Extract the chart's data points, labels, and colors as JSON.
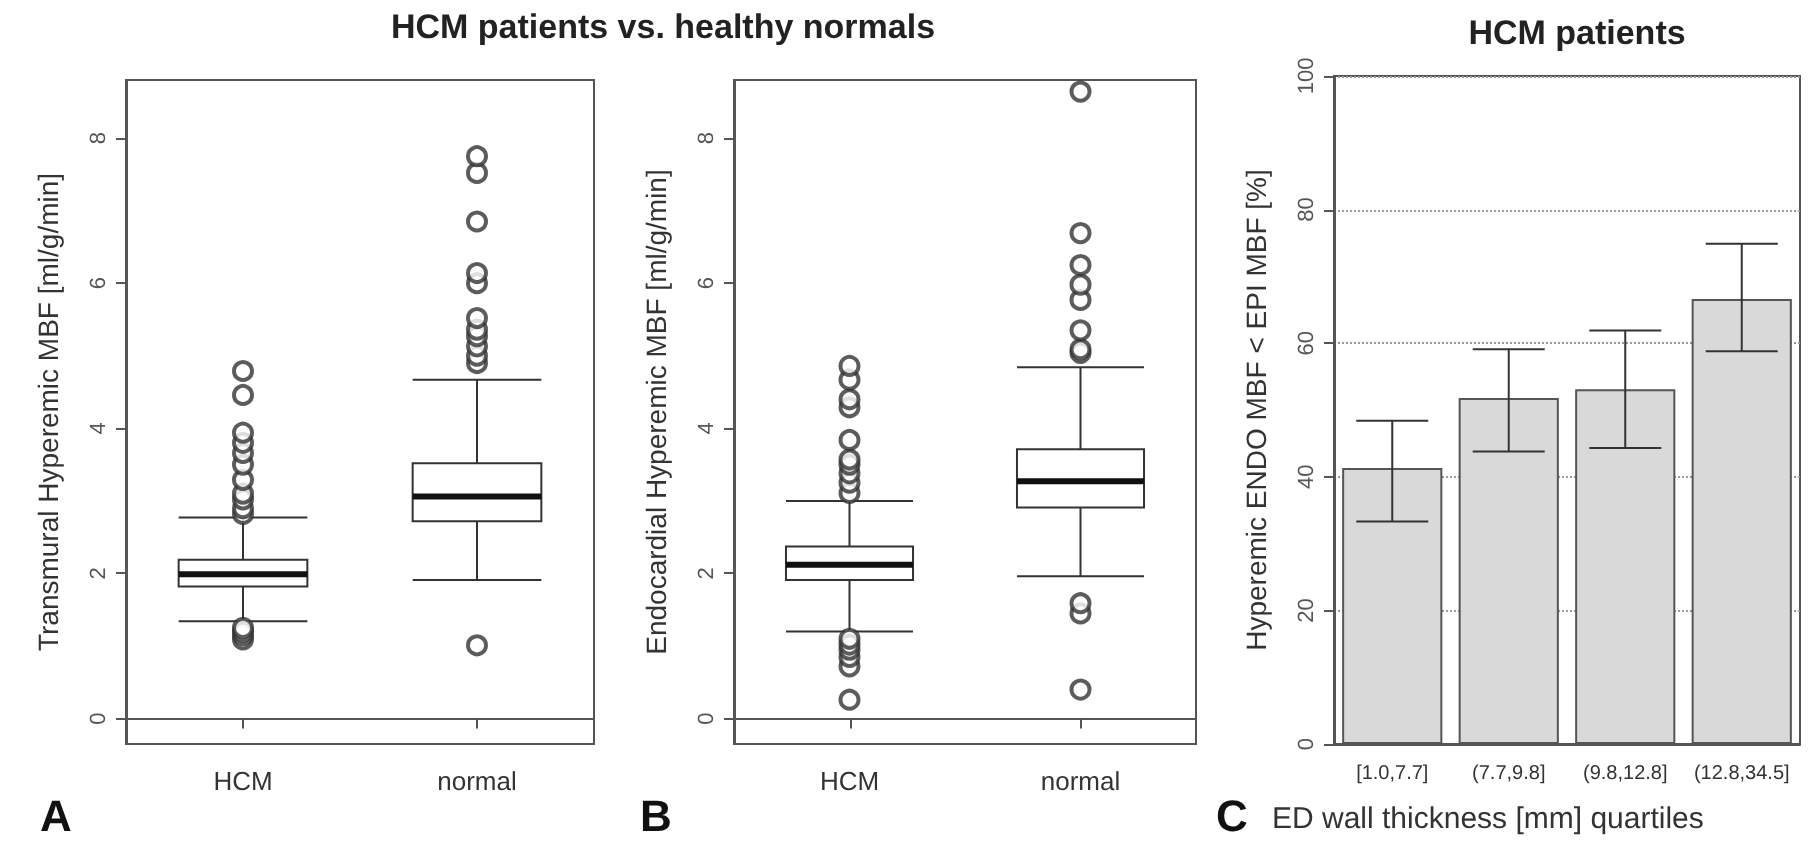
{
  "chart_data": [
    {
      "type": "box",
      "title": "HCM patients vs. healthy normals",
      "ylabel": "Transmural Hyperemic MBF [ml/g/min]",
      "categories": [
        "HCM",
        "normal"
      ],
      "ylim": [
        -0.35,
        8.8
      ],
      "yticks": [
        0,
        2,
        4,
        6,
        8
      ],
      "annotations": [
        "A"
      ],
      "boxes": [
        {
          "low": 1.34,
          "q1": 1.82,
          "median": 1.99,
          "q3": 2.19,
          "high": 2.77,
          "outliers": [
            1.09,
            1.15,
            1.2,
            1.25,
            2.82,
            2.9,
            3.02,
            3.1,
            3.29,
            3.5,
            3.66,
            3.8,
            3.94,
            4.46,
            4.79
          ]
        },
        {
          "low": 1.91,
          "q1": 2.72,
          "median": 3.06,
          "q3": 3.52,
          "high": 4.67,
          "outliers": [
            1.01,
            4.9,
            5.0,
            5.13,
            5.27,
            5.36,
            5.52,
            6.0,
            6.14,
            6.85,
            7.52,
            7.75
          ]
        }
      ]
    },
    {
      "type": "box",
      "ylabel": "Endocardial Hyperemic MBF [ml/g/min]",
      "categories": [
        "HCM",
        "normal"
      ],
      "ylim": [
        -0.35,
        8.8
      ],
      "yticks": [
        0,
        2,
        4,
        6,
        8
      ],
      "annotations": [
        "B"
      ],
      "boxes": [
        {
          "low": 1.2,
          "q1": 1.91,
          "median": 2.12,
          "q3": 2.37,
          "high": 3.0,
          "outliers": [
            0.26,
            0.72,
            0.85,
            0.95,
            1.02,
            1.1,
            3.11,
            3.25,
            3.38,
            3.5,
            3.57,
            3.84,
            4.29,
            4.4,
            4.67,
            4.86
          ]
        },
        {
          "low": 1.96,
          "q1": 2.91,
          "median": 3.27,
          "q3": 3.71,
          "high": 4.84,
          "outliers": [
            0.4,
            1.45,
            1.59,
            5.04,
            5.09,
            5.35,
            5.77,
            5.98,
            6.25,
            6.69,
            8.64
          ]
        }
      ]
    },
    {
      "type": "bar",
      "title": "HCM patients",
      "xlabel": "ED wall thickness [mm] quartiles",
      "ylabel": "Hyperemic ENDO MBF < EPI MBF [%]",
      "categories": [
        "[1.0,7.7]",
        "(7.7,9.8]",
        "(9.8,12.8]",
        "(12.8,34.5]"
      ],
      "values": [
        41.3,
        51.8,
        53.1,
        66.6
      ],
      "errors": [
        [
          33.3,
          48.4
        ],
        [
          43.8,
          59.1
        ],
        [
          44.3,
          61.9
        ],
        [
          58.8,
          74.9
        ]
      ],
      "color": "#d9d9d9",
      "ylim": [
        0,
        100
      ],
      "yticks": [
        0,
        20,
        40,
        60,
        80,
        100
      ],
      "grid": "y",
      "annotations": [
        "C"
      ]
    }
  ]
}
